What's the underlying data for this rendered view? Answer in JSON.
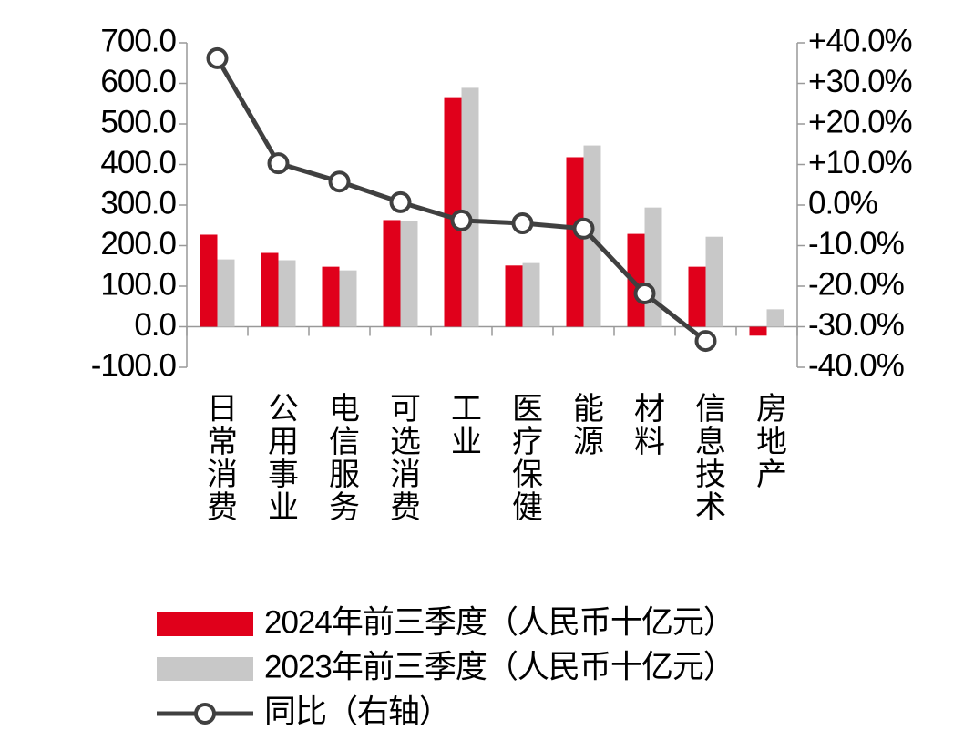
{
  "chart_data": {
    "type": "bar-line",
    "categories": [
      "日常消费",
      "公用事业",
      "电信服务",
      "可选消费",
      "工业",
      "医疗保健",
      "能源",
      "材料",
      "信息技术",
      "房地产"
    ],
    "series": [
      {
        "name": "2024年前三季度（人民币十亿元）",
        "type": "bar",
        "color": "#e0001b",
        "values": [
          227,
          182,
          148,
          263,
          566,
          151,
          418,
          229,
          148,
          -22
        ]
      },
      {
        "name": "2023年前三季度（人民币十亿元）",
        "type": "bar",
        "color": "#c8c8c8",
        "values": [
          166,
          164,
          139,
          261,
          589,
          157,
          447,
          294,
          222,
          43
        ]
      },
      {
        "name": "同比（右轴）",
        "type": "line",
        "axis": "y2",
        "color": "#404040",
        "values": [
          36.2,
          10.3,
          5.8,
          0.7,
          -3.8,
          -4.5,
          -5.8,
          -21.8,
          -33.5,
          null
        ]
      }
    ],
    "ylim": [
      -100,
      700
    ],
    "yticks": [
      {
        "value": -100,
        "label": "-100.0"
      },
      {
        "value": 0,
        "label": "0.0"
      },
      {
        "value": 100,
        "label": "100.0"
      },
      {
        "value": 200,
        "label": "200.0"
      },
      {
        "value": 300,
        "label": "300.0"
      },
      {
        "value": 400,
        "label": "400.0"
      },
      {
        "value": 500,
        "label": "500.0"
      },
      {
        "value": 600,
        "label": "600.0"
      },
      {
        "value": 700,
        "label": "700.0"
      }
    ],
    "y2lim": [
      -40,
      40
    ],
    "y2ticks": [
      {
        "value": -40,
        "label": "-40.0%"
      },
      {
        "value": -30,
        "label": "-30.0%"
      },
      {
        "value": -20,
        "label": "-20.0%"
      },
      {
        "value": -10,
        "label": "-10.0%"
      },
      {
        "value": 0,
        "label": "0.0%"
      },
      {
        "value": 10,
        "label": "+10.0%"
      },
      {
        "value": 20,
        "label": "+20.0%"
      },
      {
        "value": 30,
        "label": "+30.0%"
      },
      {
        "value": 40,
        "label": "+40.0%"
      }
    ],
    "grid": false
  }
}
